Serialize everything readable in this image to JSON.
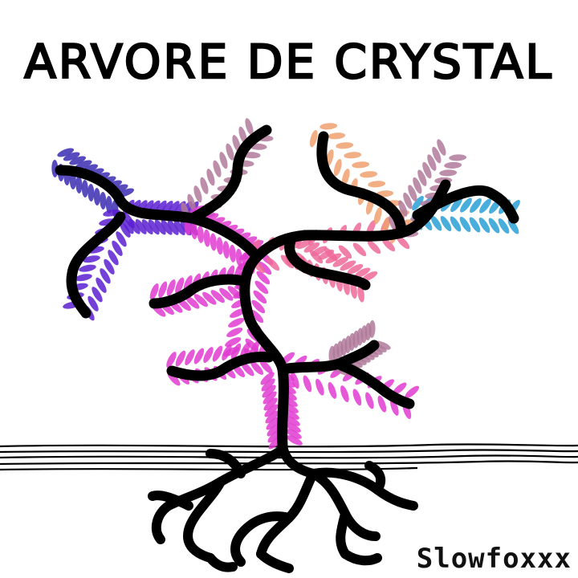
{
  "artwork": {
    "title": "ARVORE DE CRYSTAL",
    "signature": "Slowfoxxx",
    "colors": {
      "ink": "#000000",
      "background": "#ffffff",
      "crystal_violet": "#5a1fd1",
      "crystal_indigo": "#3a2bb3",
      "crystal_magenta": "#e03bd0",
      "crystal_pink": "#ee6a9a",
      "crystal_peach": "#f0a070",
      "crystal_mauve": "#b07a9a",
      "crystal_cyan": "#2aa0d6"
    },
    "icons": [
      "tree-icon",
      "roots-icon",
      "ground-lines-icon"
    ]
  }
}
